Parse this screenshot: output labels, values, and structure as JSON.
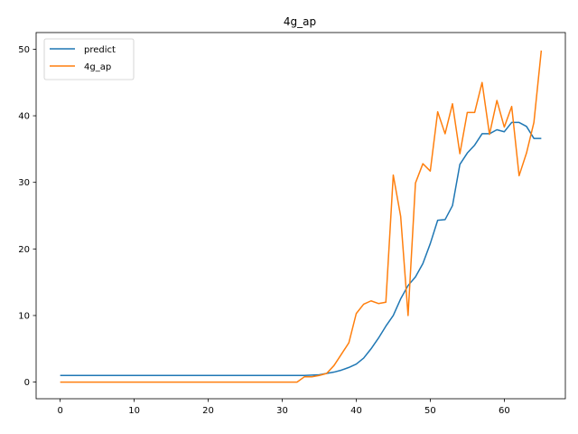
{
  "chart_data": {
    "type": "line",
    "title": "4g_ap",
    "xlabel": "",
    "ylabel": "",
    "xlim": [
      -3.25,
      68.25
    ],
    "ylim": [
      -2.5,
      52.5
    ],
    "xticks": [
      0,
      10,
      20,
      30,
      40,
      50,
      60
    ],
    "yticks": [
      0,
      10,
      20,
      30,
      40,
      50
    ],
    "grid": false,
    "legend_position": "top-left",
    "series": [
      {
        "name": "predict",
        "color": "#1f77b4",
        "x": [
          0,
          1,
          2,
          3,
          4,
          5,
          6,
          7,
          8,
          9,
          10,
          11,
          12,
          13,
          14,
          15,
          16,
          17,
          18,
          19,
          20,
          21,
          22,
          23,
          24,
          25,
          26,
          27,
          28,
          29,
          30,
          31,
          32,
          33,
          34,
          35,
          36,
          37,
          38,
          39,
          40,
          41,
          42,
          43,
          44,
          45,
          46,
          47,
          48,
          49,
          50,
          51,
          52,
          53,
          54,
          55,
          56,
          57,
          58,
          59,
          60,
          61,
          62,
          63,
          64,
          65
        ],
        "y": [
          1.0,
          1.0,
          1.0,
          1.0,
          1.0,
          1.0,
          1.0,
          1.0,
          1.0,
          1.0,
          1.0,
          1.0,
          1.0,
          1.0,
          1.0,
          1.0,
          1.0,
          1.0,
          1.0,
          1.0,
          1.0,
          1.0,
          1.0,
          1.0,
          1.0,
          1.0,
          1.0,
          1.0,
          1.0,
          1.0,
          1.0,
          1.0,
          1.0,
          1.0,
          1.05,
          1.1,
          1.3,
          1.5,
          1.8,
          2.2,
          2.7,
          3.6,
          5.0,
          6.6,
          8.4,
          10.0,
          12.5,
          14.5,
          15.8,
          17.8,
          20.8,
          24.3,
          24.4,
          26.5,
          32.7,
          34.4,
          35.6,
          37.3,
          37.3,
          37.9,
          37.6,
          39.0,
          39.0,
          38.4,
          36.6,
          36.6
        ]
      },
      {
        "name": "4g_ap",
        "color": "#ff7f0e",
        "x": [
          0,
          1,
          2,
          3,
          4,
          5,
          6,
          7,
          8,
          9,
          10,
          11,
          12,
          13,
          14,
          15,
          16,
          17,
          18,
          19,
          20,
          21,
          22,
          23,
          24,
          25,
          26,
          27,
          28,
          29,
          30,
          31,
          32,
          33,
          34,
          35,
          36,
          37,
          38,
          39,
          40,
          41,
          42,
          43,
          44,
          45,
          46,
          47,
          48,
          49,
          50,
          51,
          52,
          53,
          54,
          55,
          56,
          57,
          58,
          59,
          60,
          61,
          62,
          63,
          64,
          65
        ],
        "y": [
          0,
          0,
          0,
          0,
          0,
          0,
          0,
          0,
          0,
          0,
          0,
          0,
          0,
          0,
          0,
          0,
          0,
          0,
          0,
          0,
          0,
          0,
          0,
          0,
          0,
          0,
          0,
          0,
          0,
          0,
          0,
          0,
          0,
          0.8,
          0.8,
          1.0,
          1.3,
          2.5,
          4.2,
          5.9,
          10.3,
          11.7,
          12.2,
          11.8,
          12.0,
          31.1,
          24.9,
          10.0,
          29.9,
          32.8,
          31.7,
          40.6,
          37.3,
          41.8,
          34.3,
          40.5,
          40.5,
          45.0,
          37.2,
          42.3,
          38.3,
          41.4,
          31.0,
          34.4,
          39.0,
          49.8
        ]
      }
    ]
  }
}
